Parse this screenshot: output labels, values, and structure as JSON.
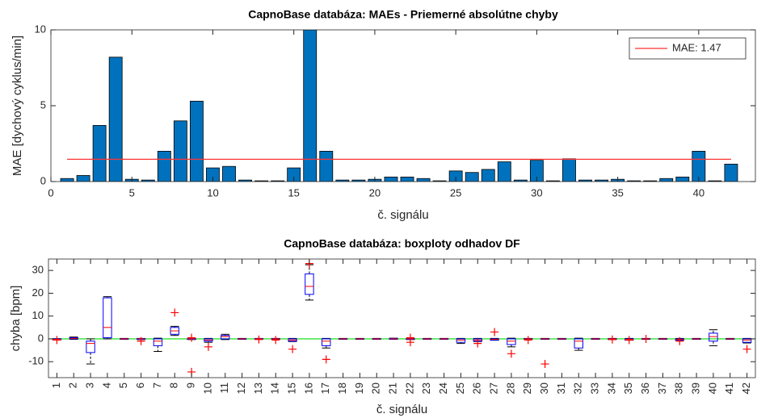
{
  "chart_data": [
    {
      "type": "bar",
      "title": "CapnoBase databáza: MAEs - Priemerné absolútne chyby",
      "x_label": "č. signálu",
      "y_label": "MAE [dychový cyklus/min]",
      "x": [
        1,
        2,
        3,
        4,
        5,
        6,
        7,
        8,
        9,
        10,
        11,
        12,
        13,
        14,
        15,
        16,
        17,
        18,
        19,
        20,
        21,
        22,
        23,
        24,
        25,
        26,
        27,
        28,
        29,
        30,
        31,
        32,
        33,
        34,
        35,
        36,
        37,
        38,
        39,
        40,
        41,
        42
      ],
      "values": [
        0.2,
        0.4,
        3.7,
        8.2,
        0.15,
        0.1,
        2.0,
        4.0,
        5.3,
        0.9,
        1.0,
        0.1,
        0.05,
        0.05,
        0.9,
        10,
        2.0,
        0.1,
        0.1,
        0.15,
        0.3,
        0.3,
        0.2,
        0.05,
        0.7,
        0.6,
        0.8,
        1.3,
        0.1,
        1.4,
        0.05,
        1.5,
        0.1,
        0.1,
        0.15,
        0.05,
        0.05,
        0.2,
        0.3,
        2.0,
        0.05,
        1.15
      ],
      "color": "#0072bd",
      "xlim": [
        0,
        43.5
      ],
      "xticks": [
        0,
        5,
        10,
        15,
        20,
        25,
        30,
        35,
        40
      ],
      "ylim": [
        0,
        10
      ],
      "yticks": [
        0,
        5,
        10
      ],
      "reference_line": {
        "label": "MAE: 1.47",
        "value": 1.47,
        "x": [
          1,
          42
        ],
        "color": "#ff3333"
      },
      "legend": "upper right"
    },
    {
      "type": "box",
      "title": "CapnoBase databáza: boxploty odhadov DF",
      "x_label": "č. signálu",
      "y_label": "chyba [bpm]",
      "categories": [
        "1",
        "2",
        "3",
        "4",
        "5",
        "6",
        "7",
        "8",
        "9",
        "10",
        "11",
        "12",
        "13",
        "14",
        "15",
        "16",
        "17",
        "18",
        "19",
        "20",
        "21",
        "22",
        "23",
        "24",
        "25",
        "26",
        "27",
        "28",
        "29",
        "30",
        "31",
        "32",
        "33",
        "34",
        "35",
        "36",
        "37",
        "38",
        "39",
        "40",
        "41",
        "42"
      ],
      "boxes": [
        {
          "whislo": -0.5,
          "q1": -0.4,
          "median": -0.2,
          "q3": 0,
          "whishi": 0.1,
          "outliers": [
            -0.5
          ]
        },
        {
          "whislo": -0.2,
          "q1": 0,
          "median": 0.2,
          "q3": 0.5,
          "whishi": 0.8
        },
        {
          "whislo": -11,
          "q1": -6,
          "median": -2,
          "q3": -1,
          "whishi": 0
        },
        {
          "whislo": 0,
          "q1": 0.5,
          "median": 5,
          "q3": 18,
          "whishi": 18.5
        },
        {
          "whislo": -0.2,
          "q1": -0.1,
          "median": 0,
          "q3": 0.1,
          "whishi": 0.2
        },
        {
          "whislo": -0.3,
          "q1": -0.2,
          "median": 0,
          "q3": 0.1,
          "whishi": 0.2,
          "outliers": [
            -1
          ]
        },
        {
          "whislo": -5.5,
          "q1": -3,
          "median": -1,
          "q3": 0,
          "whishi": 0.3
        },
        {
          "whislo": 1.5,
          "q1": 2,
          "median": 3.5,
          "q3": 5,
          "whishi": 5.5,
          "outliers": [
            11.5
          ]
        },
        {
          "whislo": -0.3,
          "q1": -0.2,
          "median": 0,
          "q3": 0.1,
          "whishi": 0.2,
          "outliers": [
            -14.5,
            0.5
          ]
        },
        {
          "whislo": -1.5,
          "q1": -1,
          "median": -0.5,
          "q3": 0,
          "whishi": 0.2,
          "outliers": [
            -3.5
          ]
        },
        {
          "whislo": -0.3,
          "q1": 0,
          "median": 1,
          "q3": 1.5,
          "whishi": 2
        },
        {
          "whislo": -0.2,
          "q1": -0.1,
          "median": 0,
          "q3": 0.1,
          "whishi": 0.2
        },
        {
          "whislo": -0.2,
          "q1": -0.1,
          "median": 0,
          "q3": 0.1,
          "whishi": 0.2,
          "outliers": [
            -0.3
          ]
        },
        {
          "whislo": -0.2,
          "q1": -0.1,
          "median": 0,
          "q3": 0.1,
          "whishi": 0.2,
          "outliers": [
            -0.5
          ]
        },
        {
          "whislo": -1.2,
          "q1": -1,
          "median": -0.5,
          "q3": 0,
          "whishi": 0.2,
          "outliers": [
            -4.5
          ]
        },
        {
          "whislo": 17,
          "q1": 19.5,
          "median": 23,
          "q3": 28.5,
          "whishi": 32.5,
          "outliers": [
            33
          ]
        },
        {
          "whislo": -4,
          "q1": -3,
          "median": -1,
          "q3": 0,
          "whishi": 0.2,
          "outliers": [
            -9
          ]
        },
        {
          "whislo": -0.2,
          "q1": -0.1,
          "median": 0,
          "q3": 0.1,
          "whishi": 0.2
        },
        {
          "whislo": -0.2,
          "q1": -0.1,
          "median": 0,
          "q3": 0.1,
          "whishi": 0.2
        },
        {
          "whislo": -0.2,
          "q1": -0.1,
          "median": 0,
          "q3": 0.1,
          "whishi": 0.2
        },
        {
          "whislo": -0.2,
          "q1": -0.1,
          "median": 0,
          "q3": 0.2,
          "whishi": 0.3
        },
        {
          "whislo": -0.3,
          "q1": -0.2,
          "median": 0,
          "q3": 0.1,
          "whishi": 0.2,
          "outliers": [
            -1.5,
            0.5
          ]
        },
        {
          "whislo": -0.2,
          "q1": -0.1,
          "median": 0,
          "q3": 0.1,
          "whishi": 0.2
        },
        {
          "whislo": -0.2,
          "q1": -0.1,
          "median": 0,
          "q3": 0.1,
          "whishi": 0.2
        },
        {
          "whislo": -2,
          "q1": -1.5,
          "median": -0.5,
          "q3": 0,
          "whishi": 0.2
        },
        {
          "whislo": -1.2,
          "q1": -1,
          "median": -0.5,
          "q3": 0,
          "whishi": 0.2,
          "outliers": [
            -2
          ]
        },
        {
          "whislo": -0.6,
          "q1": -0.5,
          "median": -0.2,
          "q3": 0,
          "whishi": 0.2,
          "outliers": [
            3
          ]
        },
        {
          "whislo": -3.5,
          "q1": -2.5,
          "median": -1,
          "q3": 0,
          "whishi": 0.3,
          "outliers": [
            -6.5
          ]
        },
        {
          "whislo": -0.2,
          "q1": -0.1,
          "median": 0,
          "q3": 0.1,
          "whishi": 0.2,
          "outliers": [
            -0.5
          ]
        },
        {
          "whislo": -0.2,
          "q1": -0.1,
          "median": 0,
          "q3": 0.1,
          "whishi": 0.2,
          "outliers": [
            -11
          ]
        },
        {
          "whislo": -0.2,
          "q1": -0.1,
          "median": 0,
          "q3": 0.1,
          "whishi": 0.2
        },
        {
          "whislo": -5,
          "q1": -4,
          "median": -1,
          "q3": 0,
          "whishi": 0.3
        },
        {
          "whislo": -0.2,
          "q1": -0.1,
          "median": 0,
          "q3": 0.1,
          "whishi": 0.2
        },
        {
          "whislo": -0.3,
          "q1": -0.2,
          "median": 0,
          "q3": 0.1,
          "whishi": 0.2,
          "outliers": [
            -0.3
          ]
        },
        {
          "whislo": -0.6,
          "q1": -0.5,
          "median": -0.2,
          "q3": 0,
          "whishi": 0.2,
          "outliers": [
            -0.5
          ]
        },
        {
          "whislo": -0.2,
          "q1": -0.1,
          "median": 0,
          "q3": 0.1,
          "whishi": 0.2,
          "outliers": [
            0
          ]
        },
        {
          "whislo": -0.2,
          "q1": -0.1,
          "median": 0,
          "q3": 0.1,
          "whishi": 0.2
        },
        {
          "whislo": -0.6,
          "q1": -0.5,
          "median": -0.2,
          "q3": 0,
          "whishi": 0.2,
          "outliers": [
            -1
          ]
        },
        {
          "whislo": -0.2,
          "q1": -0.1,
          "median": 0,
          "q3": 0.1,
          "whishi": 0.2
        },
        {
          "whislo": -3,
          "q1": -1,
          "median": 1,
          "q3": 2.5,
          "whishi": 4
        },
        {
          "whislo": -0.2,
          "q1": -0.1,
          "median": 0,
          "q3": 0.1,
          "whishi": 0.2
        },
        {
          "whislo": -1.8,
          "q1": -1.5,
          "median": -0.5,
          "q3": 0,
          "whishi": 0.2,
          "outliers": [
            -4.5
          ]
        }
      ],
      "box_color": "#0000ff",
      "median_color": "#ff0000",
      "whisker_color": "#000000",
      "outlier_color": "#ff0000",
      "ylim": [
        -17,
        35
      ],
      "yticks": [
        -10,
        0,
        10,
        20,
        30
      ],
      "reference_line": {
        "value": 0,
        "color": "#00dd00"
      }
    }
  ]
}
